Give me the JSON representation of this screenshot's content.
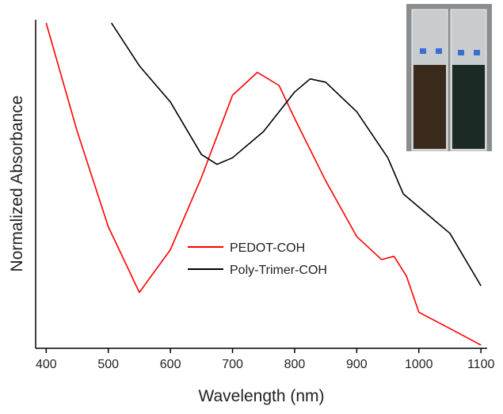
{
  "chart_data": {
    "type": "line",
    "xlabel": "Wavelength (nm)",
    "ylabel": "Normalized Absorbance",
    "xlim": [
      383,
      1110
    ],
    "ylim": [
      0,
      1
    ],
    "xticks": [
      400,
      500,
      600,
      700,
      800,
      900,
      1000,
      1100
    ],
    "series": [
      {
        "name": "PEDOT-COH",
        "color": "#ff0000",
        "x": [
          400,
          450,
          500,
          550,
          600,
          650,
          700,
          740,
          775,
          800,
          850,
          900,
          940,
          960,
          980,
          1000,
          1050,
          1100
        ],
        "values": [
          0.99,
          0.66,
          0.37,
          0.17,
          0.3,
          0.52,
          0.77,
          0.84,
          0.8,
          0.7,
          0.51,
          0.34,
          0.27,
          0.28,
          0.22,
          0.11,
          0.06,
          0.01
        ]
      },
      {
        "name": "Poly-Trimer-COH",
        "color": "#000000",
        "x": [
          505,
          550,
          600,
          650,
          675,
          700,
          750,
          800,
          825,
          850,
          900,
          950,
          975,
          1000,
          1050,
          1100
        ],
        "values": [
          0.99,
          0.86,
          0.75,
          0.59,
          0.56,
          0.58,
          0.66,
          0.78,
          0.82,
          0.81,
          0.72,
          0.58,
          0.47,
          0.43,
          0.35,
          0.19
        ]
      }
    ]
  }
}
